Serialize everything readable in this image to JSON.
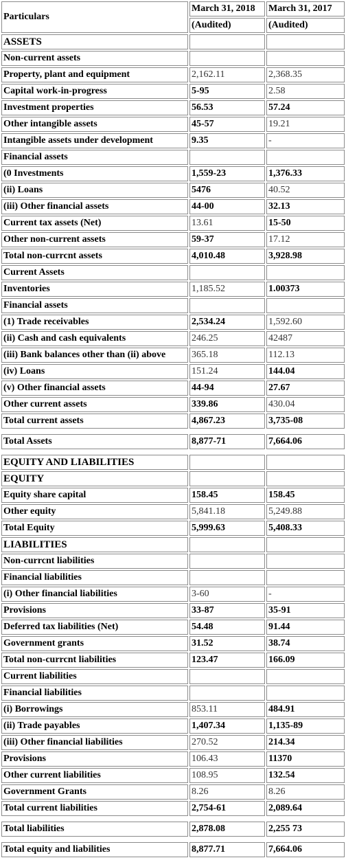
{
  "header": {
    "particulars": "Particulars",
    "col1_date": "March 31, 2018",
    "col2_date": "March 31, 2017",
    "col1_note": "(Audited)",
    "col2_note": "(Audited)"
  },
  "rows": [
    {
      "label": "ASSETS",
      "v1": "",
      "v2": "",
      "b1": false,
      "b2": false,
      "section": true
    },
    {
      "label": "Non-current assets",
      "v1": "",
      "v2": "",
      "b1": false,
      "b2": false
    },
    {
      "label": "Property, plant and equipment",
      "v1": "2,162.11",
      "v2": "2,368.35",
      "b1": false,
      "b2": false
    },
    {
      "label": "Capital work-in-progress",
      "v1": "5-95",
      "v2": "2.58",
      "b1": true,
      "b2": false
    },
    {
      "label": "Investment properties",
      "v1": "56.53",
      "v2": "57.24",
      "b1": true,
      "b2": true
    },
    {
      "label": "Other intangible assets",
      "v1": "45-57",
      "v2": "19.21",
      "b1": true,
      "b2": false
    },
    {
      "label": "Intangible assets under development",
      "v1": "9.35",
      "v2": "-",
      "b1": true,
      "b2": false
    },
    {
      "label": "Financial assets",
      "v1": "",
      "v2": "",
      "b1": false,
      "b2": false
    },
    {
      "label": "(0 Investments",
      "v1": "1,559-23",
      "v2": "1,376.33",
      "b1": true,
      "b2": true
    },
    {
      "label": "(ii) Loans",
      "v1": "5476",
      "v2": "40.52",
      "b1": true,
      "b2": false
    },
    {
      "label": "(iii) Other financial assets",
      "v1": "44-00",
      "v2": "32.13",
      "b1": true,
      "b2": true
    },
    {
      "label": "Current tax assets (Net)",
      "v1": "13.61",
      "v2": "15-50",
      "b1": false,
      "b2": true
    },
    {
      "label": "Other non-current assets",
      "v1": "59-37",
      "v2": "17.12",
      "b1": true,
      "b2": false
    },
    {
      "label": "Total non-currcnt assets",
      "v1": "4,010.48",
      "v2": "3,928.98",
      "b1": true,
      "b2": true
    },
    {
      "label": "Current Assets",
      "v1": "",
      "v2": "",
      "b1": false,
      "b2": false
    },
    {
      "label": "Inventories",
      "v1": "1,185.52",
      "v2": "1.00373",
      "b1": false,
      "b2": true
    },
    {
      "label": "Financial assets",
      "v1": "",
      "v2": "",
      "b1": false,
      "b2": false
    },
    {
      "label": "(1) Trade receivables",
      "v1": "2,534.24",
      "v2": "1,592.60",
      "b1": true,
      "b2": false
    },
    {
      "label": "(ii) Cash and cash equivalents",
      "v1": "246.25",
      "v2": "42487",
      "b1": false,
      "b2": false
    },
    {
      "label": "(iii) Bank balances other than (ii) above",
      "v1": "365.18",
      "v2": "112.13",
      "b1": false,
      "b2": false
    },
    {
      "label": "(iv) Loans",
      "v1": "151.24",
      "v2": "144.04",
      "b1": false,
      "b2": true
    },
    {
      "label": "(v) Other financial assets",
      "v1": "44-94",
      "v2": "27.67",
      "b1": true,
      "b2": true
    },
    {
      "label": "Other current assets",
      "v1": "339.86",
      "v2": "430.04",
      "b1": true,
      "b2": false
    },
    {
      "label": "Total current assets",
      "v1": "4,867.23",
      "v2": "3,735-08",
      "b1": true,
      "b2": true
    },
    {
      "gap": true
    },
    {
      "label": "Total Assets",
      "v1": "8,877-71",
      "v2": "7,664.06",
      "b1": true,
      "b2": true
    },
    {
      "gap": true
    },
    {
      "label": "EQUITY AND LIABILITIES",
      "v1": "",
      "v2": "",
      "b1": false,
      "b2": false,
      "section": true
    },
    {
      "label": "EQUITY",
      "v1": "",
      "v2": "",
      "b1": false,
      "b2": false,
      "section": true
    },
    {
      "label": "Equity share capital",
      "v1": "158.45",
      "v2": "158.45",
      "b1": true,
      "b2": true
    },
    {
      "label": "Other equity",
      "v1": "5,841.18",
      "v2": "5,249.88",
      "b1": false,
      "b2": false
    },
    {
      "label": "Total Equity",
      "v1": "5,999.63",
      "v2": "5,408.33",
      "b1": true,
      "b2": true
    },
    {
      "label": "LIABILITIES",
      "v1": "",
      "v2": "",
      "b1": false,
      "b2": false,
      "section": true
    },
    {
      "label": "Non-currcnt liabilities",
      "v1": "",
      "v2": "",
      "b1": false,
      "b2": false
    },
    {
      "label": "Financial liabilities",
      "v1": "",
      "v2": "",
      "b1": false,
      "b2": false
    },
    {
      "label": "(i) Other financial liabilities",
      "v1": "3-60",
      "v2": "-",
      "b1": false,
      "b2": false
    },
    {
      "label": "Provisions",
      "v1": "33-87",
      "v2": "35-91",
      "b1": true,
      "b2": true
    },
    {
      "label": "Deferred tax liabilities (Net)",
      "v1": "54.48",
      "v2": "91.44",
      "b1": true,
      "b2": true
    },
    {
      "label": "Government grants",
      "v1": "31.52",
      "v2": "38.74",
      "b1": true,
      "b2": true
    },
    {
      "label": "Total non-currcnt liabilities",
      "v1": "123.47",
      "v2": "166.09",
      "b1": true,
      "b2": true
    },
    {
      "label": "Current liabilities",
      "v1": "",
      "v2": "",
      "b1": false,
      "b2": false
    },
    {
      "label": "Financial liabilities",
      "v1": "",
      "v2": "",
      "b1": false,
      "b2": false
    },
    {
      "label": "(i) Borrowings",
      "v1": "853.11",
      "v2": "484.91",
      "b1": false,
      "b2": true
    },
    {
      "label": "(ii) Trade payables",
      "v1": "1,407.34",
      "v2": "1,135-89",
      "b1": true,
      "b2": true
    },
    {
      "label": "(iii) Other financial liabilities",
      "v1": "270.52",
      "v2": "214.34",
      "b1": false,
      "b2": true
    },
    {
      "label": "Provisions",
      "v1": "106.43",
      "v2": "11370",
      "b1": false,
      "b2": true
    },
    {
      "label": "Other current liabilities",
      "v1": "108.95",
      "v2": "132.54",
      "b1": false,
      "b2": true
    },
    {
      "label": "Government Grants",
      "v1": "8.26",
      "v2": "8.26",
      "b1": false,
      "b2": false
    },
    {
      "label": "Total current liabilities",
      "v1": "2,754-61",
      "v2": "2,089.64",
      "b1": true,
      "b2": true
    },
    {
      "gap": true
    },
    {
      "label": "Total liabilities",
      "v1": "2,878.08",
      "v2": "2,255 73",
      "b1": true,
      "b2": true
    },
    {
      "gap": true
    },
    {
      "label": "Total equity and liabilities",
      "v1": "8,877.71",
      "v2": "7,664.06",
      "b1": true,
      "b2": true
    }
  ]
}
